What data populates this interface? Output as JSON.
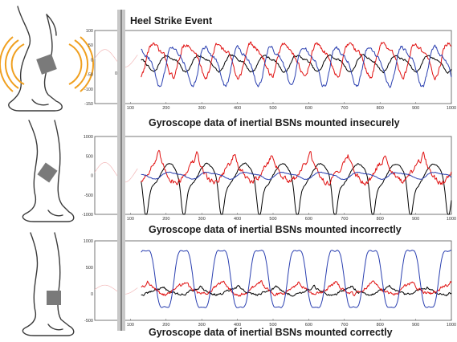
{
  "event_label": "Heel Strike Event",
  "event_marker_text": "0",
  "colors": {
    "series_black": "#000000",
    "series_red": "#e01010",
    "series_blue": "#2a3fb0",
    "sensor": "#7a7a7a",
    "waves": "#f0a020",
    "event_bar": "#c8c8c8"
  },
  "icons": [
    "leg-insecure-mount-icon",
    "leg-incorrect-mount-icon",
    "leg-correct-mount-icon"
  ],
  "chart_data": [
    {
      "type": "line",
      "title": "Gyroscope data of inertial BSNs mounted insecurely",
      "xlim": [
        0,
        1000
      ],
      "ylim": [
        -150,
        100
      ],
      "x_ticks": [
        "100",
        "200",
        "300",
        "400",
        "500",
        "600",
        "700",
        "800",
        "900",
        "1000"
      ],
      "y_ticks": [
        "100",
        "50",
        "0",
        "-50",
        "-100",
        "-150"
      ],
      "grid": false,
      "series": [
        {
          "color": "black",
          "period": 92,
          "amp": 25,
          "offset": -10,
          "phase": 0.0,
          "shape": "smooth",
          "noise": 8
        },
        {
          "color": "red",
          "period": 92,
          "amp": 50,
          "offset": 5,
          "phase": 1.4,
          "shape": "smooth",
          "noise": 18
        },
        {
          "color": "blue",
          "period": 92,
          "amp": 60,
          "offset": -15,
          "phase": 2.8,
          "shape": "smooth",
          "noise": 14
        }
      ]
    },
    {
      "type": "line",
      "title": "Gyroscope data of inertial BSNs mounted incorrectly",
      "xlim": [
        0,
        1000
      ],
      "ylim": [
        -1000,
        1000
      ],
      "x_ticks": [
        "100",
        "200",
        "300",
        "400",
        "500",
        "600",
        "700",
        "800",
        "900",
        "1000"
      ],
      "y_ticks": [
        "1000",
        "500",
        "0",
        "-500",
        "-1000"
      ],
      "grid": false,
      "series": [
        {
          "color": "black",
          "period": 106,
          "amp": 850,
          "offset": 0,
          "phase": 0.2,
          "shape": "dip",
          "noise": 40
        },
        {
          "color": "red",
          "period": 106,
          "amp": 420,
          "offset": 80,
          "phase": 0.6,
          "shape": "spiky",
          "noise": 160
        },
        {
          "color": "blue",
          "period": 106,
          "amp": 80,
          "offset": 0,
          "phase": 1.2,
          "shape": "smooth",
          "noise": 20
        }
      ]
    },
    {
      "type": "line",
      "title": "Gyroscope data of inertial BSNs mounted correctly",
      "xlim": [
        0,
        1000
      ],
      "ylim": [
        -500,
        1000
      ],
      "x_ticks": [
        "100",
        "200",
        "300",
        "400",
        "500",
        "600",
        "700",
        "800",
        "900",
        "1000"
      ],
      "y_ticks": [
        "1000",
        "500",
        "0",
        "-500"
      ],
      "grid": false,
      "series": [
        {
          "color": "black",
          "period": 106,
          "amp": 90,
          "offset": 40,
          "phase": 0.5,
          "shape": "spiky",
          "noise": 50
        },
        {
          "color": "red",
          "period": 106,
          "amp": 140,
          "offset": 80,
          "phase": 0.9,
          "shape": "spiky",
          "noise": 70
        },
        {
          "color": "blue",
          "period": 106,
          "amp": 620,
          "offset": 280,
          "phase": 2.9,
          "shape": "tall",
          "noise": 15
        }
      ]
    }
  ]
}
